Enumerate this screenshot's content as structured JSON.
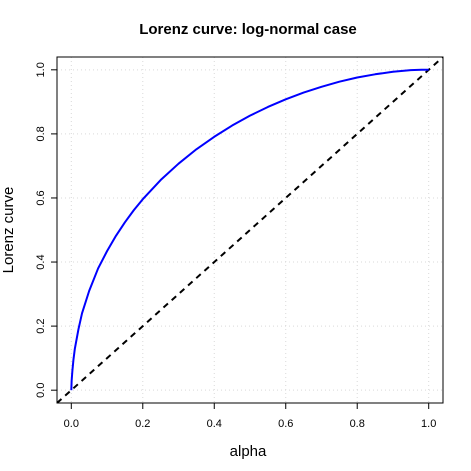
{
  "chart_data": {
    "type": "line",
    "title": "Lorenz curve: log-normal case",
    "xlabel": "alpha",
    "ylabel": "Lorenz curve",
    "xlim": [
      -0.04,
      1.04
    ],
    "ylim": [
      -0.04,
      1.04
    ],
    "xticks": [
      "0.0",
      "0.2",
      "0.4",
      "0.6",
      "0.8",
      "1.0"
    ],
    "yticks": [
      "0.0",
      "0.2",
      "0.4",
      "0.6",
      "0.8",
      "1.0"
    ],
    "grid": true,
    "grid_color": "#d9d9d9",
    "series": [
      {
        "color": "#0000ff",
        "style": "solid",
        "x": [
          0,
          0.001,
          0.003,
          0.006,
          0.01,
          0.02,
          0.03,
          0.05,
          0.075,
          0.1,
          0.125,
          0.15,
          0.175,
          0.2,
          0.25,
          0.3,
          0.35,
          0.4,
          0.45,
          0.5,
          0.55,
          0.6,
          0.65,
          0.7,
          0.75,
          0.8,
          0.85,
          0.9,
          0.95,
          0.98,
          1.0
        ],
        "y": [
          0,
          0.03,
          0.06,
          0.095,
          0.13,
          0.19,
          0.24,
          0.31,
          0.38,
          0.434,
          0.482,
          0.524,
          0.562,
          0.596,
          0.656,
          0.707,
          0.752,
          0.791,
          0.826,
          0.857,
          0.884,
          0.908,
          0.929,
          0.947,
          0.963,
          0.976,
          0.986,
          0.994,
          0.999,
          1.0,
          1.0
        ]
      },
      {
        "color": "#000000",
        "style": "dashed",
        "x": [
          -0.04,
          1.04
        ],
        "y": [
          -0.04,
          1.04
        ]
      }
    ]
  }
}
